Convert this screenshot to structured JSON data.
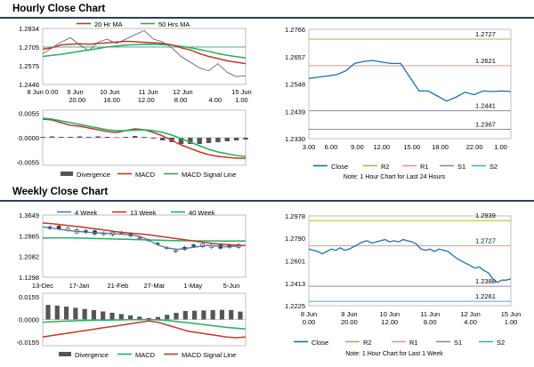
{
  "sections": {
    "hourly_title": "Hourly Close Chart",
    "weekly_title": "Weekly Close Chart"
  },
  "colors": {
    "ma20": "#c0392b",
    "ma50": "#27ae60",
    "price": "#555555",
    "divergence": "#555555",
    "macd": "#c0392b",
    "signal": "#27ae60",
    "close": "#1f6fae",
    "r2": "#9bbf3a",
    "r1": "#e2958a",
    "s1": "#8a86b8",
    "s2": "#4ea6c9",
    "divider": "#2f3f52",
    "w4": "#4a78a8",
    "w13": "#c0392b",
    "w40": "#27ae60"
  },
  "chart_data": [
    {
      "id": "hourly_ma",
      "type": "line",
      "legend": [
        "20 Hr MA",
        "50 Hrs MA"
      ],
      "ytick_labels": [
        "1.2834",
        "1.2705",
        "1.2575",
        "1.2446"
      ],
      "yticks": [
        1.2834,
        1.2705,
        1.2575,
        1.2446
      ],
      "ylim": [
        1.2446,
        1.2834
      ],
      "xtick_top": [
        "8 Jun 0.00",
        "9 Jun",
        "10 Jun",
        "11 Jun",
        "12 Jun",
        "15 Jun"
      ],
      "xtick_bottom": [
        "",
        "20.00",
        "16.00",
        "12.00",
        "8.00",
        "4.00",
        "1.00"
      ],
      "xtick_pos": [
        0,
        0.17,
        0.34,
        0.51,
        0.68,
        0.85,
        0.98
      ],
      "series": [
        {
          "name": "20 Hr MA",
          "values": [
            1.269,
            1.27,
            1.272,
            1.2725,
            1.2728,
            1.2725,
            1.273,
            1.2735,
            1.274,
            1.2745,
            1.2742,
            1.2738,
            1.2735,
            1.273,
            1.272,
            1.27,
            1.2685,
            1.266,
            1.264,
            1.2625,
            1.261,
            1.26,
            1.259
          ]
        },
        {
          "name": "50 Hrs MA",
          "values": [
            1.264,
            1.2648,
            1.2655,
            1.2665,
            1.2675,
            1.2685,
            1.2695,
            1.2705,
            1.2712,
            1.2718,
            1.2722,
            1.2724,
            1.2725,
            1.2722,
            1.2718,
            1.271,
            1.27,
            1.2688,
            1.2675,
            1.266,
            1.2648,
            1.2638,
            1.263
          ]
        },
        {
          "name": "Price",
          "values": [
            1.266,
            1.27,
            1.274,
            1.277,
            1.272,
            1.268,
            1.274,
            1.276,
            1.273,
            1.276,
            1.279,
            1.282,
            1.276,
            1.274,
            1.27,
            1.264,
            1.26,
            1.256,
            1.254,
            1.259,
            1.253,
            1.25,
            1.2505
          ]
        }
      ],
      "hline": 1.2705
    },
    {
      "id": "hourly_macd",
      "type": "bar+line",
      "legend": [
        "Divergence",
        "MACD",
        "MACD Signal Line"
      ],
      "ytick_labels": [
        "0.0055",
        "0.0000",
        "-0.0055"
      ],
      "yticks": [
        0.0055,
        0.0,
        -0.0055
      ],
      "ylim": [
        -0.0062,
        0.0062
      ],
      "macd": [
        0.0042,
        0.004,
        0.0034,
        0.0028,
        0.0026,
        0.0022,
        0.0018,
        0.0014,
        0.0012,
        0.0016,
        0.002,
        0.0018,
        0.0012,
        0.0004,
        -0.0006,
        -0.0016,
        -0.0024,
        -0.0032,
        -0.0038,
        -0.0042,
        -0.0044,
        -0.0046,
        -0.0046
      ],
      "signal": [
        0.0044,
        0.0042,
        0.0038,
        0.0034,
        0.003,
        0.0026,
        0.0022,
        0.0018,
        0.0016,
        0.0016,
        0.0017,
        0.0018,
        0.0016,
        0.0012,
        0.0006,
        -0.0002,
        -0.001,
        -0.0018,
        -0.0026,
        -0.0032,
        -0.0036,
        -0.004,
        -0.0042
      ],
      "divergence": [
        0.0002,
        0.0003,
        0.0002,
        0.0002,
        0.0003,
        0.0002,
        0.0003,
        0.0002,
        0.0001,
        0.0002,
        0.0004,
        0.0002,
        -0.0002,
        -0.0006,
        -0.001,
        -0.0014,
        -0.0014,
        -0.0014,
        -0.0012,
        -0.001,
        -0.0008,
        -0.0006,
        -0.0004
      ]
    },
    {
      "id": "hourly_close",
      "type": "line",
      "ytick_labels": [
        "1.2766",
        "1.2657",
        "1.2548",
        "1.2439",
        "1.2330"
      ],
      "yticks": [
        1.2766,
        1.2657,
        1.2548,
        1.2439,
        1.233
      ],
      "ylim": [
        1.233,
        1.2766
      ],
      "xtick_labels": [
        "3.00",
        "6.00",
        "9.00",
        "12.00",
        "15.00",
        "18.00",
        "22.00",
        "1.00"
      ],
      "x": [
        3,
        4,
        5,
        6,
        7,
        8,
        9,
        10,
        11,
        12,
        13,
        14,
        15,
        16,
        17,
        18,
        19,
        20,
        21,
        22,
        23,
        24,
        25
      ],
      "values": [
        1.257,
        1.2575,
        1.258,
        1.2585,
        1.26,
        1.263,
        1.2638,
        1.2642,
        1.2635,
        1.263,
        1.263,
        1.2575,
        1.252,
        1.252,
        1.25,
        1.248,
        1.2495,
        1.2515,
        1.2505,
        1.252,
        1.2518,
        1.252,
        1.2518
      ],
      "levels": [
        {
          "name": "R2",
          "value": 1.2727,
          "label": "1.2727"
        },
        {
          "name": "R1",
          "value": 1.2621,
          "label": "1.2621"
        },
        {
          "name": "S1",
          "value": 1.2441,
          "label": "1.2441"
        },
        {
          "name": "S2",
          "value": 1.2367,
          "label": "1.2367"
        }
      ],
      "legend": [
        "Close",
        "R2",
        "R1",
        "S1",
        "S2"
      ],
      "note": "Note: 1 Hour Chart for Last 24 Hours"
    },
    {
      "id": "weekly_ma",
      "type": "line",
      "legend": [
        "4 Week",
        "13 Week",
        "40 Week"
      ],
      "ytick_labels": [
        "1.3649",
        "1.2865",
        "1.2082",
        "1.1298"
      ],
      "yticks": [
        1.3649,
        1.2865,
        1.2082,
        1.1298
      ],
      "ylim": [
        1.1298,
        1.3649
      ],
      "xtick_labels": [
        "13-Dec",
        "17-Jan",
        "21-Feb",
        "27-Mar",
        "1-May",
        "5-Jun"
      ],
      "series": [
        {
          "name": "4 Week",
          "values": [
            1.32,
            1.315,
            1.31,
            1.305,
            1.302,
            1.299,
            1.297,
            1.295,
            1.293,
            1.29,
            1.285,
            1.27,
            1.25,
            1.24,
            1.235,
            1.24,
            1.245,
            1.25,
            1.248,
            1.245,
            1.247,
            1.25
          ]
        },
        {
          "name": "13 Week",
          "values": [
            1.335,
            1.332,
            1.328,
            1.324,
            1.32,
            1.315,
            1.31,
            1.305,
            1.3,
            1.297,
            1.294,
            1.29,
            1.285,
            1.28,
            1.275,
            1.27,
            1.265,
            1.26,
            1.256,
            1.253,
            1.251,
            1.25
          ]
        },
        {
          "name": "40 Week",
          "values": [
            1.278,
            1.279,
            1.279,
            1.2785,
            1.278,
            1.277,
            1.276,
            1.275,
            1.274,
            1.273,
            1.272,
            1.271,
            1.27,
            1.269,
            1.268,
            1.268,
            1.2675,
            1.267,
            1.267,
            1.2668,
            1.2665,
            1.2665
          ]
        }
      ]
    },
    {
      "id": "weekly_macd",
      "type": "bar+line",
      "legend": [
        "Divergence",
        "MACD",
        "MACD Signal Line"
      ],
      "ytick_labels": [
        "0.0155",
        "0.0000",
        "-0.0155"
      ],
      "yticks": [
        0.0155,
        0.0,
        -0.0155
      ],
      "ylim": [
        -0.018,
        0.018
      ],
      "macd": [
        -0.012,
        -0.011,
        -0.01,
        -0.009,
        -0.008,
        -0.007,
        -0.006,
        -0.005,
        -0.004,
        -0.003,
        -0.002,
        -0.001,
        -0.002,
        -0.004,
        -0.006,
        -0.008,
        -0.009,
        -0.01,
        -0.011,
        -0.012,
        -0.0125,
        -0.012
      ],
      "signal": [
        -0.002,
        -0.0015,
        -0.0012,
        -0.001,
        -0.0008,
        -0.0006,
        -0.0005,
        -0.0004,
        -0.0003,
        -0.0002,
        -0.0001,
        0.0,
        -0.0003,
        -0.0008,
        -0.0015,
        -0.0022,
        -0.003,
        -0.0038,
        -0.0046,
        -0.0054,
        -0.006,
        -0.0066
      ],
      "divergence": [
        0.01,
        0.0095,
        0.0088,
        0.008,
        0.0072,
        0.0064,
        0.0055,
        0.0046,
        0.0037,
        0.0028,
        0.0019,
        0.001,
        0.0017,
        0.0032,
        0.0045,
        0.0058,
        0.006,
        0.0062,
        0.0064,
        0.0066,
        0.0065,
        0.0054
      ]
    },
    {
      "id": "weekly_close",
      "type": "line",
      "ytick_labels": [
        "1.2978",
        "1.2790",
        "1.2601",
        "1.2413",
        "1.2225"
      ],
      "yticks": [
        1.2978,
        1.279,
        1.2601,
        1.2413,
        1.2225
      ],
      "ylim": [
        1.2225,
        1.2978
      ],
      "xtick_top": [
        "8 Jun",
        "9 Jun",
        "10 Jun",
        "11 Jun",
        "12 Jun",
        "15 Jun"
      ],
      "xtick_bottom": [
        "0.00",
        "20.00",
        "12.00",
        "8.00",
        "4.00",
        "1.00"
      ],
      "xtick_pos": [
        0.0,
        0.2,
        0.4,
        0.6,
        0.8,
        1.0
      ],
      "values": [
        1.27,
        1.269,
        1.268,
        1.266,
        1.268,
        1.27,
        1.269,
        1.271,
        1.269,
        1.27,
        1.272,
        1.274,
        1.276,
        1.277,
        1.275,
        1.276,
        1.277,
        1.278,
        1.276,
        1.277,
        1.276,
        1.278,
        1.277,
        1.276,
        1.274,
        1.27,
        1.269,
        1.27,
        1.268,
        1.27,
        1.269,
        1.268,
        1.265,
        1.262,
        1.26,
        1.258,
        1.256,
        1.254,
        1.255,
        1.252,
        1.25,
        1.245,
        1.242,
        1.244,
        1.244,
        1.245
      ],
      "levels": [
        {
          "name": "R2",
          "value": 1.2939,
          "label": "1.2939"
        },
        {
          "name": "R1",
          "value": 1.2727,
          "label": "1.2727"
        },
        {
          "name": "S1",
          "value": 1.2388,
          "label": "1.2388"
        },
        {
          "name": "S2",
          "value": 1.2261,
          "label": "1.2261"
        }
      ],
      "legend": [
        "Close",
        "R2",
        "R1",
        "S1",
        "S2"
      ],
      "note": "Note: 1 Hour Chart for Last 1 Week"
    }
  ]
}
